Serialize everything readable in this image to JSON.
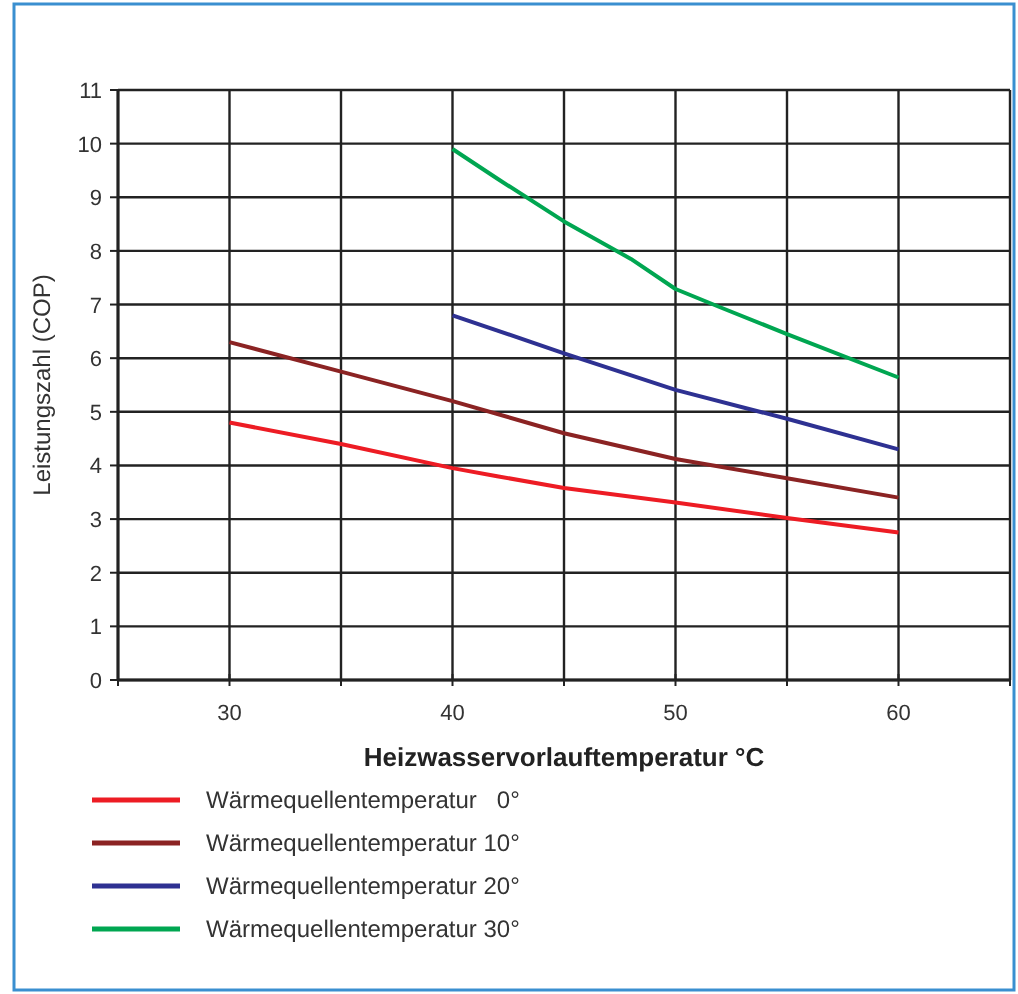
{
  "chart_data": {
    "type": "line",
    "xlabel": "Heizwasservorlauftemperatur °C",
    "ylabel": "Leistungszahl (COP)",
    "xlim": [
      25,
      65
    ],
    "xticks": [
      {
        "value": 25,
        "label": null
      },
      30,
      {
        "value": 35,
        "label": null
      },
      40,
      {
        "value": 45,
        "label": null
      },
      50,
      {
        "value": 55,
        "label": null
      },
      60,
      {
        "value": 65,
        "label": null
      }
    ],
    "ylim": [
      0,
      11
    ],
    "yticks": [
      0,
      1,
      2,
      3,
      4,
      5,
      6,
      7,
      8,
      9,
      10,
      11
    ],
    "grid": true,
    "legend": "bottom",
    "marker": "none",
    "line_style": "solid",
    "series": [
      {
        "name": "Wärmequellentemperatur   0°",
        "color": "#ed1c24",
        "x": [
          30,
          35,
          40,
          42,
          45,
          50,
          55,
          60
        ],
        "values": [
          4.8,
          4.4,
          3.95,
          3.8,
          3.58,
          3.31,
          3.02,
          2.75
        ]
      },
      {
        "name": "Wärmequellentemperatur 10°",
        "color": "#8b2323",
        "x": [
          30,
          35,
          40,
          45,
          50,
          55,
          60
        ],
        "values": [
          6.3,
          5.75,
          5.2,
          4.6,
          4.12,
          3.76,
          3.4
        ]
      },
      {
        "name": "Wärmequellentemperatur 20°",
        "color": "#2e3192",
        "x": [
          40,
          45,
          50,
          55,
          60
        ],
        "values": [
          6.8,
          6.09,
          5.41,
          4.87,
          4.3
        ]
      },
      {
        "name": "Wärmequellentemperatur 30°",
        "color": "#00a651",
        "x": [
          40,
          42,
          45,
          48,
          50,
          52,
          55,
          60
        ],
        "values": [
          9.9,
          9.35,
          8.55,
          7.85,
          7.29,
          6.95,
          6.45,
          5.64
        ]
      }
    ]
  }
}
